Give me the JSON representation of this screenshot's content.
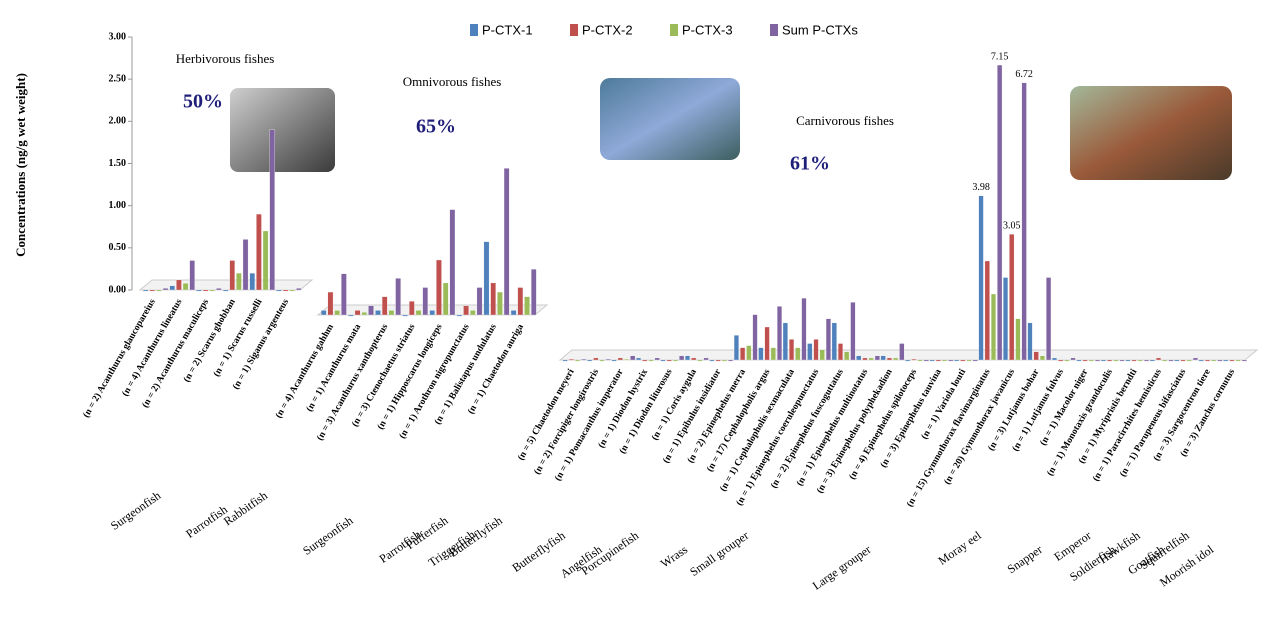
{
  "chart_data": {
    "type": "bar",
    "y_label": "Concentrations (ng/g wet weight)",
    "ylim": [
      0,
      3
    ],
    "yticks": [
      {
        "value": 0,
        "label": "0.00"
      },
      {
        "value": 0.5,
        "label": "0.50"
      },
      {
        "value": 1,
        "label": "1.00"
      },
      {
        "value": 1.5,
        "label": "1.50"
      },
      {
        "value": 2,
        "label": "2.00"
      },
      {
        "value": 2.5,
        "label": "2.50"
      },
      {
        "value": 3,
        "label": "3.00"
      }
    ],
    "series": [
      {
        "name": "P-CTX-1",
        "color": "#4f81bd",
        "values": [
          0,
          0.05,
          0,
          0,
          0.2,
          0,
          0.05,
          0,
          0.05,
          0,
          0.05,
          0,
          0.8,
          0.05,
          0,
          0,
          0,
          0.05,
          0,
          0.1,
          0,
          0.6,
          0.3,
          0.9,
          0.4,
          0.9,
          0.1,
          0.1,
          0,
          0,
          0,
          3.98,
          2.0,
          0.9,
          0.05,
          0,
          0,
          0,
          0,
          0,
          0,
          0
        ],
        "value_labels": [
          null,
          null,
          null,
          null,
          null,
          null,
          null,
          null,
          null,
          null,
          null,
          null,
          null,
          null,
          null,
          null,
          null,
          null,
          null,
          null,
          null,
          null,
          null,
          null,
          null,
          null,
          null,
          null,
          null,
          null,
          null,
          "3.98",
          null,
          null,
          null,
          null,
          null,
          null,
          null,
          null,
          null,
          null
        ]
      },
      {
        "name": "P-CTX-2",
        "color": "#c0504d",
        "values": [
          0,
          0.12,
          0,
          0.35,
          0.9,
          0,
          0.25,
          0.05,
          0.2,
          0.15,
          0.6,
          0.1,
          0.35,
          0.3,
          0.02,
          0.05,
          0.05,
          0,
          0,
          0.05,
          0,
          0.3,
          0.8,
          0.5,
          0.5,
          0.4,
          0.05,
          0.05,
          0.02,
          0,
          0,
          2.4,
          3.05,
          0.2,
          0,
          0,
          0,
          0,
          0.05,
          0,
          0,
          0
        ],
        "value_labels": [
          null,
          null,
          null,
          null,
          null,
          null,
          null,
          null,
          null,
          null,
          null,
          null,
          null,
          null,
          null,
          null,
          null,
          null,
          null,
          null,
          null,
          null,
          null,
          null,
          null,
          null,
          null,
          null,
          null,
          null,
          null,
          null,
          "3.05",
          null,
          null,
          null,
          null,
          null,
          null,
          null,
          null,
          null
        ]
      },
      {
        "name": "P-CTX-3",
        "color": "#9bbb59",
        "values": [
          0,
          0.08,
          0,
          0.2,
          0.7,
          0,
          0.05,
          0.03,
          0.05,
          0.05,
          0.35,
          0.05,
          0.25,
          0.2,
          0,
          0,
          0.02,
          0,
          0,
          0,
          0,
          0.35,
          0.3,
          0.3,
          0.25,
          0.2,
          0.05,
          0.05,
          0,
          0,
          0,
          1.6,
          1.0,
          0.1,
          0,
          0,
          0,
          0,
          0,
          0,
          0,
          0
        ]
      },
      {
        "name": "Sum P-CTXs",
        "color": "#8064a2",
        "values": [
          0.02,
          0.35,
          0.02,
          0.6,
          1.9,
          0.02,
          0.45,
          0.1,
          0.4,
          0.3,
          1.15,
          0.3,
          1.6,
          0.5,
          0.02,
          0.02,
          0.1,
          0.05,
          0.1,
          0.05,
          0,
          1.1,
          1.3,
          1.5,
          1.0,
          1.4,
          0.1,
          0.4,
          0,
          0,
          0,
          7.15,
          6.72,
          2.0,
          0.05,
          0,
          0,
          0,
          0,
          0.05,
          0,
          0
        ],
        "value_labels": [
          null,
          null,
          null,
          null,
          null,
          null,
          null,
          null,
          null,
          null,
          null,
          null,
          null,
          null,
          null,
          null,
          null,
          null,
          null,
          null,
          null,
          null,
          null,
          null,
          null,
          null,
          null,
          null,
          null,
          null,
          null,
          "7.15",
          "6.72",
          null,
          null,
          null,
          null,
          null,
          null,
          null,
          null,
          null
        ]
      }
    ],
    "panels": [
      {
        "title": "Herbivorous fishes",
        "share": "50%",
        "families": [
          {
            "name": "Surgeonfish",
            "categories": [
              "(n = 2) Acanthurus glaucopareius",
              "(n = 4) Acanthurus lineatus",
              "(n = 2) Acanthurus maculiceps"
            ]
          },
          {
            "name": "Parrotfish",
            "categories": [
              "(n = 2) Scarus ghobban",
              "(n = 1) Scarus russelli"
            ]
          },
          {
            "name": "Rabbitfish",
            "categories": [
              "(n = 1) Siganus argenteus"
            ]
          }
        ]
      },
      {
        "title": "Omnivorous fishes",
        "share": "65%",
        "ylim": [
          0,
          3
        ],
        "families": [
          {
            "name": "Surgeonfish",
            "categories": [
              "(n = 4) Acanthurus gahhm",
              "(n = 1) Acanthurus mata",
              "(n = 3) Acanthurus xanthopterus",
              "(n = 3) Ctenochaetus striatus"
            ]
          },
          {
            "name": "Parrotfish",
            "categories": [
              "(n = 1) Hipposcarus longiceps"
            ]
          },
          {
            "name": "Pufferfish",
            "categories": [
              "(n = 1) Arothron nigropunctatus"
            ]
          },
          {
            "name": "Triggerfish",
            "categories": [
              "(n = 1) Balistapus undulatus"
            ]
          },
          {
            "name": "Butterflyfish",
            "categories": [
              "(n = 1) Chaetodon auriga"
            ]
          }
        ]
      },
      {
        "title": "Carnivorous fishes",
        "share": "61%",
        "ylim": [
          0,
          8
        ],
        "families": [
          {
            "name": "Butterflyfish",
            "categories": [
              "(n = 5) Chaetodon meyeri",
              "(n = 2) Forcipiger longirostris"
            ]
          },
          {
            "name": "Angelfish",
            "categories": [
              "(n = 1) Pomacanthus imperator"
            ]
          },
          {
            "name": "Porcupinefish",
            "categories": [
              "(n = 1) Diodon hystrix",
              "(n = 1) Diodon liturosus"
            ]
          },
          {
            "name": "Wrass",
            "categories": [
              "(n = 1) Coris aygula",
              "(n = 1) Epibulus insidiator"
            ]
          },
          {
            "name": "Small grouper",
            "categories": [
              "(n = 2) Epinephelus merra",
              "(n = 17) Cephalopholis argus",
              "(n = 1) Cephalopholis sexmaculata"
            ]
          },
          {
            "name": "Large grouper",
            "categories": [
              "(n = 1) Epinephelus coeruleopunctatus",
              "(n = 2) Epinephelus fuscoguttatus",
              "(n = 1) Epinephelus multinotatus",
              "(n = 3) Epinephelus polyphekadion",
              "(n = 4) Epinephelus spilotoceps",
              "(n = 3) Epinephelus tauvina",
              "(n = 1) Variola louti"
            ]
          },
          {
            "name": "Moray eel",
            "categories": [
              "(n = 15) Gymnothorax flavimarginatus",
              "(n = 20) Gymnothorax javanicus"
            ]
          },
          {
            "name": "Snapper",
            "categories": [
              "(n = 3) Lutjanus bohar",
              "(n = 1) Lutjanus fulvus",
              "(n = 1) Macolor niger"
            ]
          },
          {
            "name": "Emperor",
            "categories": [
              "(n = 1) Monotaxis grandoculis"
            ]
          },
          {
            "name": "Soldierfish",
            "categories": [
              "(n = 1) Myripristis berndti"
            ]
          },
          {
            "name": "Hawkfish",
            "categories": [
              "(n = 1) Paracirrhites hemisticus"
            ]
          },
          {
            "name": "Goatfish",
            "categories": [
              "(n = 1) Parupeneus bifasciatus"
            ]
          },
          {
            "name": "Squirrelfish",
            "categories": [
              "(n = 3) Sargocentron tiere"
            ]
          },
          {
            "name": "Moorish idol",
            "categories": [
              "(n = 3) Zanclus cornutus"
            ]
          }
        ]
      }
    ]
  }
}
